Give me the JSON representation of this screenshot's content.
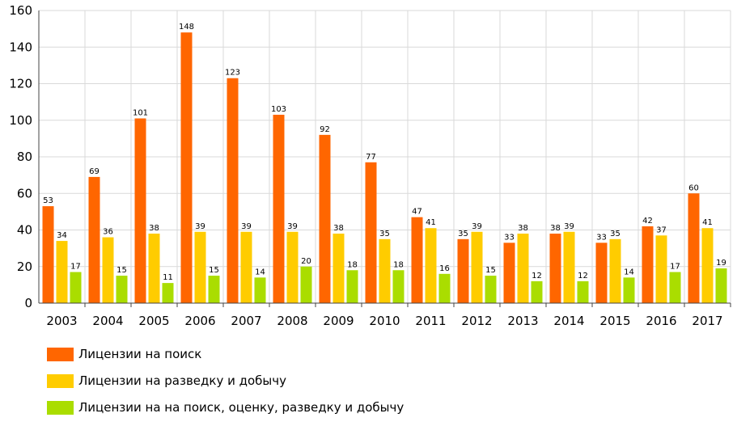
{
  "chart_data": {
    "type": "bar",
    "categories": [
      "2003",
      "2004",
      "2005",
      "2006",
      "2007",
      "2008",
      "2009",
      "2010",
      "2011",
      "2012",
      "2013",
      "2014",
      "2015",
      "2016",
      "2017"
    ],
    "series": [
      {
        "name": "Лицензии на поиск",
        "color": "#ff6600",
        "values": [
          53,
          69,
          101,
          148,
          123,
          103,
          92,
          77,
          47,
          35,
          33,
          38,
          33,
          42,
          60
        ]
      },
      {
        "name": "Лицензии на разведку и добычу",
        "color": "#ffcc00",
        "values": [
          34,
          36,
          38,
          39,
          39,
          39,
          38,
          35,
          41,
          39,
          38,
          39,
          35,
          37,
          41
        ]
      },
      {
        "name": "Лицензии на на поиск, оценку, разведку и добычу",
        "color": "#aadd00",
        "values": [
          17,
          15,
          11,
          15,
          14,
          20,
          18,
          18,
          16,
          15,
          12,
          12,
          14,
          17,
          19
        ]
      }
    ],
    "ylim": [
      0,
      160
    ],
    "yticks": [
      0,
      20,
      40,
      60,
      80,
      100,
      120,
      140,
      160
    ],
    "grid": true,
    "legend": "bottom-left",
    "title": "",
    "xlabel": "",
    "ylabel": ""
  }
}
